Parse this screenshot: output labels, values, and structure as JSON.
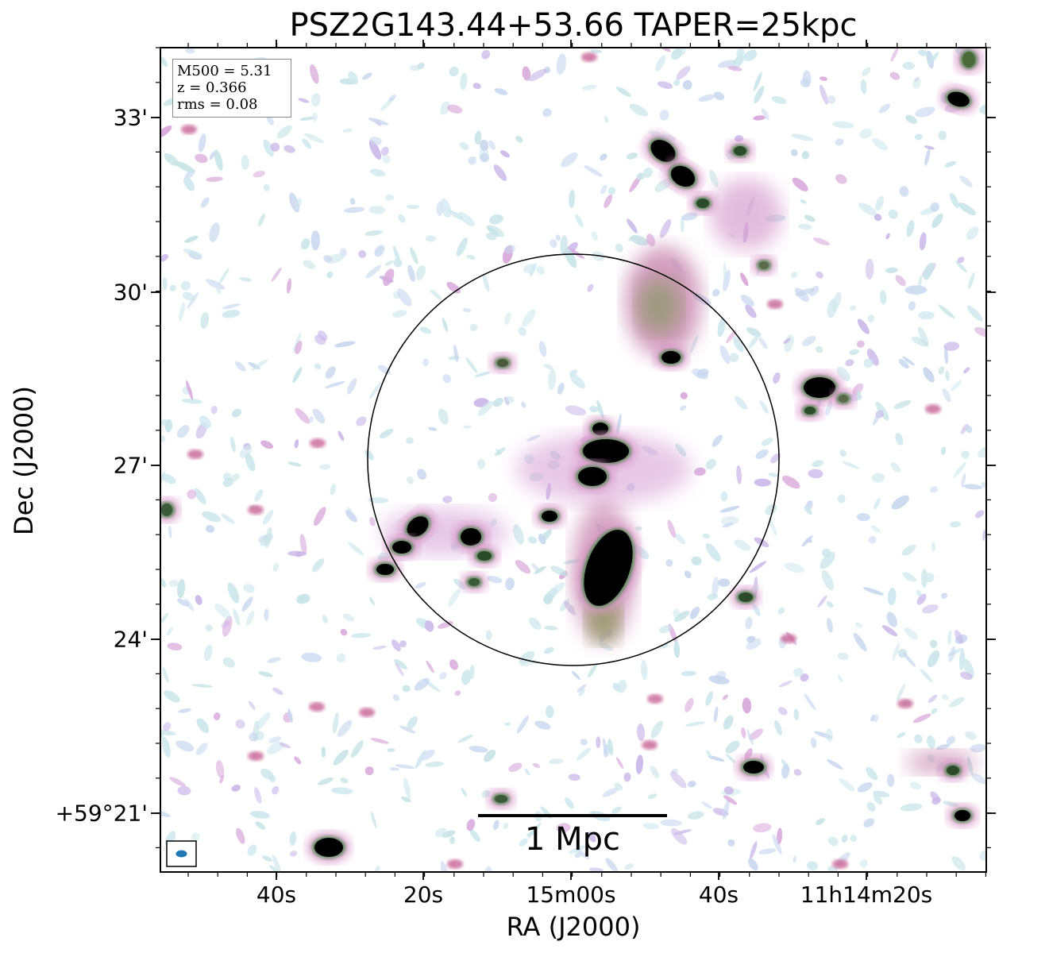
{
  "figure": {
    "title": "PSZ2G143.44+53.66 TAPER=25kpc",
    "xlabel": "RA (J2000)",
    "ylabel": "Dec (J2000)",
    "colormap": "cubehelix_r (white - light blue - pink - green - black)",
    "x_ticks": [
      "40s",
      "20s",
      "15m00s",
      "40s",
      "11h14m20s"
    ],
    "y_ticks": [
      "33'",
      "30'",
      "27'",
      "24'",
      "+59°21'"
    ],
    "info_box": {
      "m500": "M500 = 5.31",
      "z": "z = 0.366",
      "rms": "rms = 0.08"
    },
    "scale_bar_label": "1 Mpc",
    "beam_color": "#1f77b4",
    "circle_color": "#000000"
  }
}
